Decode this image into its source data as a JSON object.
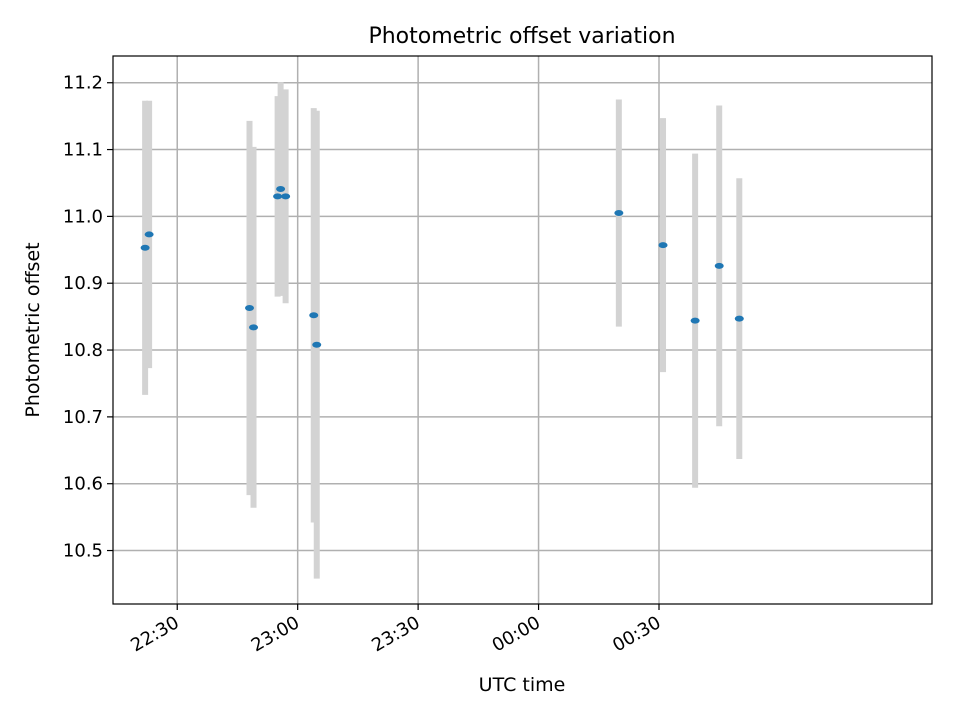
{
  "chart_data": {
    "type": "scatter",
    "title": "Photometric offset variation",
    "xlabel": "UTC time",
    "ylabel": "Photometric offset",
    "xlim": [
      "22:14",
      "01:38"
    ],
    "ylim": [
      10.42,
      11.24
    ],
    "grid": true,
    "x_ticks": [
      "22:30",
      "23:00",
      "23:30",
      "00:00",
      "00:30"
    ],
    "y_ticks": [
      "10.5",
      "10.6",
      "10.7",
      "10.8",
      "10.9",
      "11.0",
      "11.1",
      "11.2"
    ],
    "colors": {
      "point": "#1f77b4",
      "errorbar": "#d3d3d3",
      "grid": "#b0b0b0"
    },
    "points": [
      {
        "x": "22:22",
        "y": 10.953,
        "err": 0.22
      },
      {
        "x": "22:23",
        "y": 10.973,
        "err": 0.2
      },
      {
        "x": "22:48",
        "y": 10.863,
        "err": 0.28
      },
      {
        "x": "22:49",
        "y": 10.834,
        "err": 0.27
      },
      {
        "x": "22:55",
        "y": 11.03,
        "err": 0.15
      },
      {
        "x": "22:55",
        "y": 11.041,
        "err": 0.16
      },
      {
        "x": "22:57",
        "y": 11.03,
        "err": 0.16
      },
      {
        "x": "23:04",
        "y": 10.852,
        "err": 0.31
      },
      {
        "x": "23:04",
        "y": 10.808,
        "err": 0.35
      },
      {
        "x": "00:20",
        "y": 11.005,
        "err": 0.17
      },
      {
        "x": "00:31",
        "y": 10.957,
        "err": 0.19
      },
      {
        "x": "00:39",
        "y": 10.844,
        "err": 0.25
      },
      {
        "x": "00:45",
        "y": 10.926,
        "err": 0.24
      },
      {
        "x": "00:50",
        "y": 10.847,
        "err": 0.21
      }
    ]
  }
}
